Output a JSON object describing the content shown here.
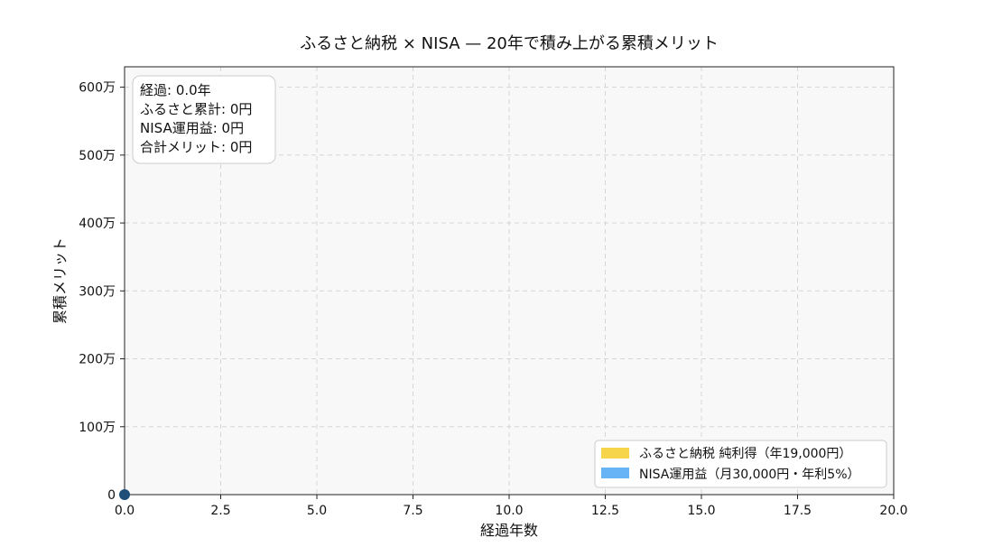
{
  "chart_data": {
    "type": "area",
    "title": "ふるさと納税 × NISA — 20年で積み上がる累積メリット",
    "xlabel": "経過年数",
    "ylabel": "累積メリット",
    "xlim": [
      0,
      20
    ],
    "ylim": [
      0,
      6300000
    ],
    "x_ticks": [
      0,
      2.5,
      5,
      7.5,
      10,
      12.5,
      15,
      17.5,
      20
    ],
    "x_tick_labels": [
      "0.0",
      "2.5",
      "5.0",
      "7.5",
      "10.0",
      "12.5",
      "15.0",
      "17.5",
      "20.0"
    ],
    "y_ticks": [
      0,
      1000000,
      2000000,
      3000000,
      4000000,
      5000000,
      6000000
    ],
    "y_tick_labels": [
      "0",
      "100万",
      "200万",
      "300万",
      "400万",
      "500万",
      "600万"
    ],
    "grid": true,
    "legend_position": "lower-right",
    "series": [
      {
        "name": "ふるさと納税 純利得（年19,000円）",
        "color": "#f7d54a",
        "x": [
          0
        ],
        "values": [
          0
        ]
      },
      {
        "name": "NISA運用益（月30,000円・年利5%）",
        "color": "#66b3f5",
        "x": [
          0
        ],
        "values": [
          0
        ]
      }
    ],
    "marker": {
      "x": 0,
      "y": 0,
      "color": "#1f4e79"
    },
    "info_box": {
      "lines": [
        "経過:  0.0年",
        "ふるさと累計: 0円",
        "NISA運用益:   0円",
        "合計メリット: 0円"
      ]
    }
  }
}
